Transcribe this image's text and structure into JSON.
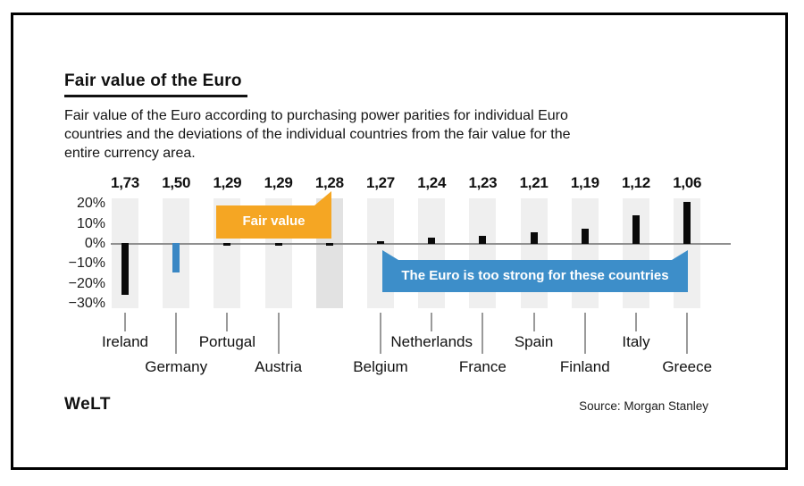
{
  "header": {
    "title": "Fair value of the Euro",
    "subtitle_lines": [
      "Fair value of the Euro according to purchasing power parities for individual Euro",
      "countries and the deviations of the individual countries from the fair value for the",
      "entire currency area."
    ]
  },
  "chart_data": {
    "type": "bar",
    "title": "Fair value of the Euro",
    "xlabel": "",
    "ylabel": "",
    "ylim": [
      -33,
      23
    ],
    "grid": false,
    "zero_line": true,
    "y_ticks": [
      {
        "label": "20%",
        "value": 20
      },
      {
        "label": "10%",
        "value": 10
      },
      {
        "label": "0%",
        "value": 0
      },
      {
        "label": "−10%",
        "value": -10
      },
      {
        "label": "−20%",
        "value": -20
      },
      {
        "label": "−30%",
        "value": -30
      }
    ],
    "columns": [
      {
        "ppp_label": "1,73",
        "country": "Ireland",
        "deviation_pct": -26.0,
        "highlight": false,
        "label_row": "upper",
        "fair_value_column": false
      },
      {
        "ppp_label": "1,50",
        "country": "Germany",
        "deviation_pct": -14.7,
        "highlight": true,
        "label_row": "lower",
        "fair_value_column": false
      },
      {
        "ppp_label": "1,29",
        "country": "Portugal",
        "deviation_pct": -0.8,
        "highlight": false,
        "label_row": "upper",
        "fair_value_column": false
      },
      {
        "ppp_label": "1,29",
        "country": "Austria",
        "deviation_pct": -0.8,
        "highlight": false,
        "label_row": "lower",
        "fair_value_column": false
      },
      {
        "ppp_label": "1,28",
        "country": "",
        "deviation_pct": 0.0,
        "highlight": false,
        "label_row": null,
        "fair_value_column": true
      },
      {
        "ppp_label": "1,27",
        "country": "Belgium",
        "deviation_pct": 0.8,
        "highlight": false,
        "label_row": "lower",
        "fair_value_column": false
      },
      {
        "ppp_label": "1,24",
        "country": "Netherlands",
        "deviation_pct": 3.2,
        "highlight": false,
        "label_row": "upper",
        "fair_value_column": false
      },
      {
        "ppp_label": "1,23",
        "country": "France",
        "deviation_pct": 4.1,
        "highlight": false,
        "label_row": "lower",
        "fair_value_column": false
      },
      {
        "ppp_label": "1,21",
        "country": "Spain",
        "deviation_pct": 5.8,
        "highlight": false,
        "label_row": "upper",
        "fair_value_column": false
      },
      {
        "ppp_label": "1,19",
        "country": "Finland",
        "deviation_pct": 7.6,
        "highlight": false,
        "label_row": "lower",
        "fair_value_column": false
      },
      {
        "ppp_label": "1,12",
        "country": "Italy",
        "deviation_pct": 14.3,
        "highlight": false,
        "label_row": "upper",
        "fair_value_column": false
      },
      {
        "ppp_label": "1,06",
        "country": "Greece",
        "deviation_pct": 20.8,
        "highlight": false,
        "label_row": "lower",
        "fair_value_column": false
      }
    ],
    "annotations": {
      "fair_value": {
        "text": "Fair value",
        "color": "#f5a623"
      },
      "too_strong": {
        "text": "The Euro is too strong for these countries",
        "color": "#3d8ec9"
      }
    }
  },
  "footer": {
    "logo_text": "WeLT",
    "source": "Source: Morgan Stanley"
  },
  "colors": {
    "bar": "#0a0a0a",
    "bar_highlight": "#3a87c4",
    "stripe": "#efefef",
    "stripe_fair": "#e2e2e2",
    "zero_line": "#8f8f8f",
    "tick": "#9a9a9a",
    "callout_orange": "#f5a623",
    "callout_blue": "#3d8ec9",
    "text": "#111111"
  }
}
